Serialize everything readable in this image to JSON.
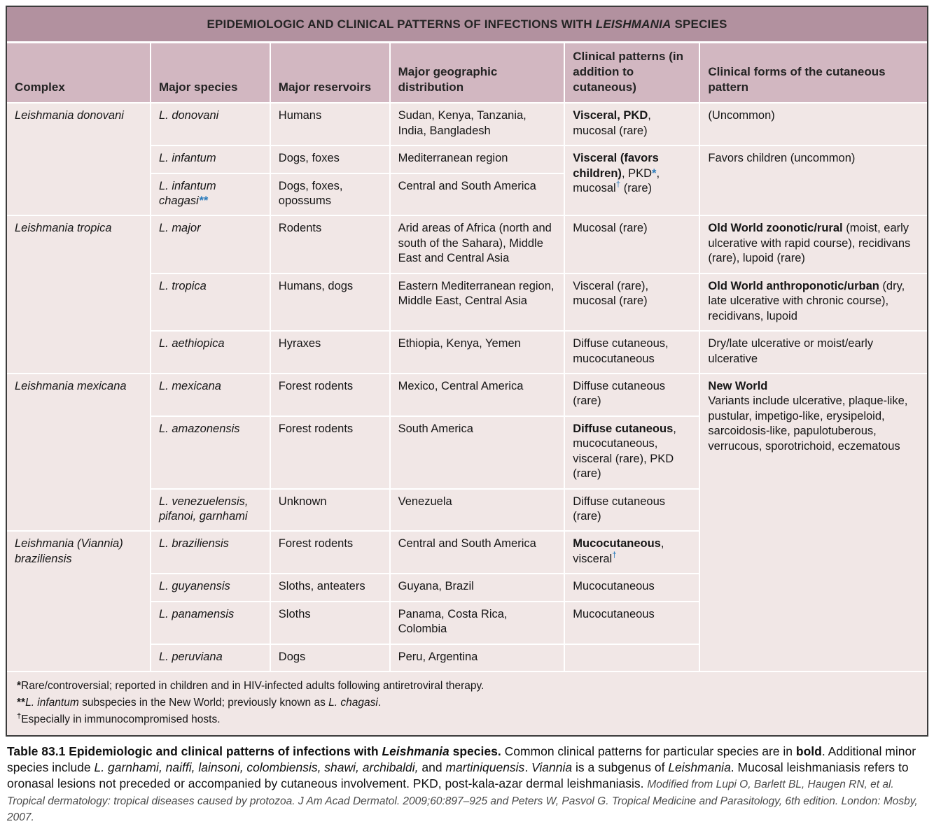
{
  "colors": {
    "title_bar_bg": "#b2919f",
    "header_row_bg": "#d2b7c1",
    "body_row_bg": "#f1e7e6",
    "grid_line": "#ffffff",
    "outer_border": "#3c3c3c",
    "marker_blue": "#2b7bbb",
    "text": "#161616"
  },
  "table": {
    "title": {
      "pre": "EPIDEMIOLOGIC AND CLINICAL PATTERNS OF INFECTIONS WITH ",
      "emph": "LEISHMANIA",
      "post": " SPECIES"
    },
    "columns": [
      "Complex",
      "Major species",
      "Major reservoirs",
      "Major geographic distribution",
      "Clinical patterns (in addition to cutaneous)",
      "Clinical forms of the cutaneous pattern"
    ],
    "groups": [
      {
        "complex": [
          {
            "t": "Leishmania donovani"
          }
        ],
        "rows": [
          {
            "species": [
              {
                "t": "L. donovani"
              }
            ],
            "reservoirs": [
              {
                "t": "Humans"
              }
            ],
            "geography": [
              {
                "t": "Sudan, Kenya, Tanzania, India, Bangladesh"
              }
            ],
            "clinical": {
              "segments": [
                {
                  "t": "Visceral, PKD",
                  "s": "b"
                },
                {
                  "t": ", mucosal (rare)"
                }
              ]
            },
            "forms": {
              "segments": [
                {
                  "t": "(Uncommon)"
                }
              ]
            }
          },
          {
            "species": [
              {
                "t": "L. infantum"
              }
            ],
            "reservoirs": [
              {
                "t": "Dogs, foxes"
              }
            ],
            "geography": [
              {
                "t": "Mediterranean region"
              }
            ],
            "clinical": {
              "rowspan": 2,
              "segments": [
                {
                  "t": "Visceral (favors children)",
                  "s": "b"
                },
                {
                  "t": ", PKD"
                },
                {
                  "t": "*",
                  "s": "blue-b"
                },
                {
                  "t": ", mucosal"
                },
                {
                  "t": "†",
                  "s": "blue-sup"
                },
                {
                  "t": " (rare)"
                }
              ]
            },
            "forms": {
              "rowspan": 2,
              "segments": [
                {
                  "t": "Favors children (uncommon)"
                }
              ]
            }
          },
          {
            "species": [
              {
                "t": "L. infantum chagasi"
              },
              {
                "t": "**",
                "s": "blue-b"
              }
            ],
            "reservoirs": [
              {
                "t": "Dogs, foxes, opossums"
              }
            ],
            "geography": [
              {
                "t": "Central and South America"
              }
            ],
            "clinical": null,
            "forms": null
          }
        ]
      },
      {
        "complex": [
          {
            "t": "Leishmania tropica"
          }
        ],
        "rows": [
          {
            "species": [
              {
                "t": "L. major"
              }
            ],
            "reservoirs": [
              {
                "t": "Rodents"
              }
            ],
            "geography": [
              {
                "t": "Arid areas of Africa (north and south of the Sahara), Middle East and Central Asia"
              }
            ],
            "clinical": {
              "segments": [
                {
                  "t": "Mucosal (rare)"
                }
              ]
            },
            "forms": {
              "segments": [
                {
                  "t": "Old World zoonotic/rural",
                  "s": "b"
                },
                {
                  "t": " (moist, early ulcerative with rapid course), recidivans (rare), lupoid (rare)"
                }
              ]
            }
          },
          {
            "species": [
              {
                "t": "L. tropica"
              }
            ],
            "reservoirs": [
              {
                "t": "Humans, dogs"
              }
            ],
            "geography": [
              {
                "t": "Eastern Mediterranean region, Middle East, Central Asia"
              }
            ],
            "clinical": {
              "segments": [
                {
                  "t": "Visceral (rare), mucosal (rare)"
                }
              ]
            },
            "forms": {
              "segments": [
                {
                  "t": "Old World anthroponotic/urban",
                  "s": "b"
                },
                {
                  "t": " (dry, late ulcerative with chronic course), recidivans, lupoid"
                }
              ]
            }
          },
          {
            "species": [
              {
                "t": "L. aethiopica"
              }
            ],
            "reservoirs": [
              {
                "t": "Hyraxes"
              }
            ],
            "geography": [
              {
                "t": "Ethiopia, Kenya, Yemen"
              }
            ],
            "clinical": {
              "segments": [
                {
                  "t": "Diffuse cutaneous, mucocutaneous"
                }
              ]
            },
            "forms": {
              "segments": [
                {
                  "t": "Dry/late ulcerative or moist/early ulcerative"
                }
              ]
            }
          }
        ]
      },
      {
        "complex": [
          {
            "t": "Leishmania mexicana"
          }
        ],
        "rows": [
          {
            "species": [
              {
                "t": "L. mexicana"
              }
            ],
            "reservoirs": [
              {
                "t": "Forest rodents"
              }
            ],
            "geography": [
              {
                "t": "Mexico, Central America"
              }
            ],
            "clinical": {
              "segments": [
                {
                  "t": "Diffuse cutaneous (rare)"
                }
              ]
            },
            "forms": {
              "rowspan": 7,
              "segments": [
                {
                  "t": "New World",
                  "s": "b"
                },
                {
                  "br": true
                },
                {
                  "t": "Variants include ulcerative, plaque-like, pustular, impetigo-like, erysipeloid, sarcoidosis-like, papulotuberous, verrucous, sporotrichoid, eczematous"
                }
              ]
            }
          },
          {
            "species": [
              {
                "t": "L. amazonensis"
              }
            ],
            "reservoirs": [
              {
                "t": "Forest rodents"
              }
            ],
            "geography": [
              {
                "t": "South America"
              }
            ],
            "clinical": {
              "segments": [
                {
                  "t": "Diffuse cutaneous",
                  "s": "b"
                },
                {
                  "t": ", mucocutaneous, visceral (rare), PKD (rare)"
                }
              ]
            },
            "forms": null
          },
          {
            "species": [
              {
                "t": "L. venezuelensis, pifanoi, garnhami"
              }
            ],
            "reservoirs": [
              {
                "t": "Unknown"
              }
            ],
            "geography": [
              {
                "t": "Venezuela"
              }
            ],
            "clinical": {
              "segments": [
                {
                  "t": "Diffuse cutaneous (rare)"
                }
              ]
            },
            "forms": null
          }
        ]
      },
      {
        "complex": [
          {
            "t": "Leishmania (Viannia) braziliensis"
          }
        ],
        "rows": [
          {
            "species": [
              {
                "t": "L. braziliensis"
              }
            ],
            "reservoirs": [
              {
                "t": "Forest rodents"
              }
            ],
            "geography": [
              {
                "t": "Central and South America"
              }
            ],
            "clinical": {
              "segments": [
                {
                  "t": "Mucocutaneous",
                  "s": "b"
                },
                {
                  "t": ", visceral"
                },
                {
                  "t": "†",
                  "s": "blue-sup"
                }
              ]
            },
            "forms": null
          },
          {
            "species": [
              {
                "t": "L. guyanensis"
              }
            ],
            "reservoirs": [
              {
                "t": "Sloths, anteaters"
              }
            ],
            "geography": [
              {
                "t": "Guyana, Brazil"
              }
            ],
            "clinical": {
              "segments": [
                {
                  "t": "Mucocutaneous"
                }
              ]
            },
            "forms": null
          },
          {
            "species": [
              {
                "t": "L. panamensis"
              }
            ],
            "reservoirs": [
              {
                "t": "Sloths"
              }
            ],
            "geography": [
              {
                "t": "Panama, Costa Rica, Colombia"
              }
            ],
            "clinical": {
              "segments": [
                {
                  "t": "Mucocutaneous"
                }
              ]
            },
            "forms": null
          },
          {
            "species": [
              {
                "t": "L. peruviana"
              }
            ],
            "reservoirs": [
              {
                "t": "Dogs"
              }
            ],
            "geography": [
              {
                "t": "Peru, Argentina"
              }
            ],
            "clinical": {
              "segments": []
            },
            "forms": null
          }
        ]
      }
    ],
    "footnotes": [
      [
        {
          "t": "*",
          "s": "b"
        },
        {
          "t": "Rare/controversial; reported in children and in HIV-infected adults following antiretroviral therapy."
        }
      ],
      [
        {
          "t": "**",
          "s": "b"
        },
        {
          "t": "L. infantum",
          "s": "i"
        },
        {
          "t": " subspecies in the New World; previously known as "
        },
        {
          "t": "L. chagasi",
          "s": "i"
        },
        {
          "t": "."
        }
      ],
      [
        {
          "t": "†",
          "s": "sup"
        },
        {
          "t": "Especially in immunocompromised hosts."
        }
      ]
    ]
  },
  "caption": {
    "segments": [
      {
        "t": "Table 83.1 Epidemiologic and clinical patterns of infections with ",
        "s": "b"
      },
      {
        "t": "Leishmania",
        "s": "bi"
      },
      {
        "t": " species.",
        "s": "b"
      },
      {
        "t": " Common clinical patterns for particular species are in "
      },
      {
        "t": "bold",
        "s": "b"
      },
      {
        "t": ". Additional minor species include "
      },
      {
        "t": "L. garnhami, naiffi, lainsoni, colombiensis, shawi, archibaldi,",
        "s": "i"
      },
      {
        "t": " and "
      },
      {
        "t": "martiniquensis",
        "s": "i"
      },
      {
        "t": ". "
      },
      {
        "t": "Viannia",
        "s": "i"
      },
      {
        "t": " is a subgenus of "
      },
      {
        "t": "Leishmania",
        "s": "i"
      },
      {
        "t": ". Mucosal leishmaniasis refers to oronasal lesions not preceded or accompanied by cutaneous involvement. PKD, post-kala-azar dermal leishmaniasis. "
      },
      {
        "t": "Modified from Lupi O, Barlett BL, Haugen RN, et al. Tropical dermatology: tropical diseases caused by protozoa. J Am Acad Dermatol. 2009;60:897–925 and Peters W, Pasvol G. Tropical Medicine and Parasitology, 6th edition. London: Mosby, 2007.",
        "s": "cite"
      }
    ]
  }
}
